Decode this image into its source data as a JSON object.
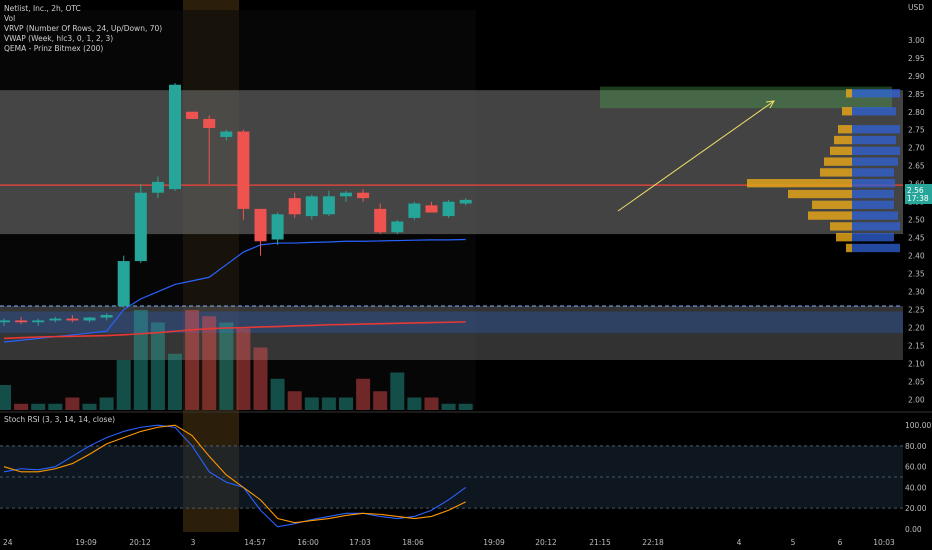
{
  "legend": {
    "title": "Netlist, Inc., 2h, OTC",
    "vol": "Vol",
    "vrvp": "VRVP (Number Of Rows, 24, Up/Down, 70)",
    "vwap": "VWAP (Week, hlc3, 0, 1, 2, 3)",
    "qema": "QEMA - Prinz Bitmex (200)",
    "stoch": "Stoch RSI (3, 3, 14, 14, close)"
  },
  "currency": "USD",
  "price_tag": {
    "value": "2.56",
    "countdown": "17:38"
  },
  "colors": {
    "up": "#26a69a",
    "down": "#ef5350",
    "vwap": "#2962ff",
    "ema": "#e53935",
    "poc": "#f44336",
    "profile": "#e0a31a",
    "zone": "#6f6f6f",
    "green_zone": "#4caf50",
    "stoch_k": "#2962ff",
    "stoch_d": "#ff9800"
  },
  "chart_data": [
    {
      "type": "candlestick",
      "title": "Netlist, Inc., 2h, OTC",
      "y_axis_label": "USD",
      "price_axis_ticks": [
        "3.00",
        "2.95",
        "2.90",
        "2.85",
        "2.80",
        "2.75",
        "2.70",
        "2.65",
        "2.60",
        "2.55",
        "2.50",
        "2.45",
        "2.40",
        "2.35",
        "2.30",
        "2.25",
        "2.20",
        "2.15",
        "2.10",
        "2.05",
        "2.00"
      ],
      "ylim": [
        1.985,
        3.055
      ],
      "time_axis_ticks": [
        "24",
        "19:09",
        "20:12",
        "3",
        "14:57",
        "16:00",
        "17:03",
        "18:06",
        "19:09",
        "20:12",
        "21:15",
        "22:18",
        "4",
        "5",
        "6",
        "10:03"
      ],
      "candles": [
        {
          "t": 0,
          "o": 2.215,
          "h": 2.225,
          "l": 2.205,
          "c": 2.22
        },
        {
          "t": 1,
          "o": 2.22,
          "h": 2.23,
          "l": 2.21,
          "c": 2.215
        },
        {
          "t": 2,
          "o": 2.215,
          "h": 2.225,
          "l": 2.205,
          "c": 2.22
        },
        {
          "t": 3,
          "o": 2.22,
          "h": 2.23,
          "l": 2.215,
          "c": 2.225
        },
        {
          "t": 4,
          "o": 2.225,
          "h": 2.235,
          "l": 2.215,
          "c": 2.22
        },
        {
          "t": 5,
          "o": 2.22,
          "h": 2.23,
          "l": 2.215,
          "c": 2.228
        },
        {
          "t": 6,
          "o": 2.228,
          "h": 2.24,
          "l": 2.22,
          "c": 2.235
        },
        {
          "t": 7,
          "o": 2.26,
          "h": 2.4,
          "l": 2.255,
          "c": 2.385
        },
        {
          "t": 8,
          "o": 2.385,
          "h": 2.6,
          "l": 2.38,
          "c": 2.575
        },
        {
          "t": 9,
          "o": 2.575,
          "h": 2.62,
          "l": 2.56,
          "c": 2.605
        },
        {
          "t": 10,
          "o": 2.585,
          "h": 2.88,
          "l": 2.58,
          "c": 2.875
        },
        {
          "t": 11,
          "o": 2.8,
          "h": 2.8,
          "l": 2.78,
          "c": 2.78
        },
        {
          "t": 12,
          "o": 2.78,
          "h": 2.79,
          "l": 2.6,
          "c": 2.755
        },
        {
          "t": 13,
          "o": 2.73,
          "h": 2.75,
          "l": 2.72,
          "c": 2.745
        },
        {
          "t": 14,
          "o": 2.745,
          "h": 2.75,
          "l": 2.5,
          "c": 2.53
        },
        {
          "t": 15,
          "o": 2.53,
          "h": 2.53,
          "l": 2.4,
          "c": 2.44
        },
        {
          "t": 16,
          "o": 2.445,
          "h": 2.52,
          "l": 2.43,
          "c": 2.515
        },
        {
          "t": 17,
          "o": 2.56,
          "h": 2.575,
          "l": 2.505,
          "c": 2.515
        },
        {
          "t": 18,
          "o": 2.51,
          "h": 2.57,
          "l": 2.5,
          "c": 2.565
        },
        {
          "t": 19,
          "o": 2.515,
          "h": 2.58,
          "l": 2.51,
          "c": 2.565
        },
        {
          "t": 20,
          "o": 2.565,
          "h": 2.58,
          "l": 2.55,
          "c": 2.575
        },
        {
          "t": 21,
          "o": 2.575,
          "h": 2.585,
          "l": 2.55,
          "c": 2.56
        },
        {
          "t": 22,
          "o": 2.53,
          "h": 2.545,
          "l": 2.46,
          "c": 2.465
        },
        {
          "t": 23,
          "o": 2.465,
          "h": 2.5,
          "l": 2.46,
          "c": 2.495
        },
        {
          "t": 24,
          "o": 2.505,
          "h": 2.55,
          "l": 2.5,
          "c": 2.545
        },
        {
          "t": 25,
          "o": 2.54,
          "h": 2.55,
          "l": 2.52,
          "c": 2.52
        },
        {
          "t": 26,
          "o": 2.51,
          "h": 2.555,
          "l": 2.505,
          "c": 2.55
        },
        {
          "t": 27,
          "o": 2.545,
          "h": 2.56,
          "l": 2.54,
          "c": 2.555
        }
      ],
      "volume": [
        4,
        1,
        1,
        1,
        2,
        1,
        2,
        8,
        16,
        14,
        9,
        16,
        15,
        14,
        13,
        10,
        5,
        3,
        2,
        2,
        2,
        5,
        3,
        6,
        2,
        2,
        1,
        1
      ],
      "vwap": [
        2.16,
        2.165,
        2.17,
        2.175,
        2.18,
        2.185,
        2.19,
        2.25,
        2.28,
        2.3,
        2.32,
        2.33,
        2.34,
        2.375,
        2.41,
        2.43,
        2.435,
        2.435,
        2.437,
        2.438,
        2.44,
        2.44,
        2.441,
        2.442,
        2.443,
        2.444,
        2.444,
        2.445
      ],
      "ema": [
        2.17,
        2.172,
        2.174,
        2.175,
        2.176,
        2.177,
        2.178,
        2.18,
        2.183,
        2.186,
        2.19,
        2.194,
        2.197,
        2.199,
        2.2,
        2.202,
        2.203,
        2.205,
        2.206,
        2.208,
        2.209,
        2.21,
        2.211,
        2.212,
        2.213,
        2.214,
        2.215,
        2.216
      ],
      "poc_price": 2.596,
      "gray_zone": [
        2.46,
        2.86
      ],
      "lower_zone": [
        2.11,
        2.26
      ],
      "target_zone": [
        2.81,
        2.87
      ]
    },
    {
      "type": "line",
      "title": "Stoch RSI (3, 3, 14, 14, close)",
      "ticks": [
        "100.00",
        "80.00",
        "60.00",
        "40.00",
        "20.00",
        "0.00"
      ],
      "ylim": [
        -3,
        105
      ],
      "series": [
        {
          "values": [
            55,
            58,
            57,
            60,
            70,
            80,
            88,
            94,
            98,
            100,
            98,
            80,
            55,
            45,
            40,
            18,
            2,
            5,
            9,
            12,
            15,
            15,
            12,
            10,
            12,
            18,
            28,
            40
          ]
        },
        {
          "values": [
            60,
            55,
            55,
            58,
            63,
            72,
            82,
            88,
            94,
            98,
            100,
            90,
            70,
            52,
            40,
            28,
            10,
            6,
            8,
            10,
            13,
            15,
            14,
            12,
            10,
            12,
            18,
            26
          ]
        }
      ]
    }
  ]
}
